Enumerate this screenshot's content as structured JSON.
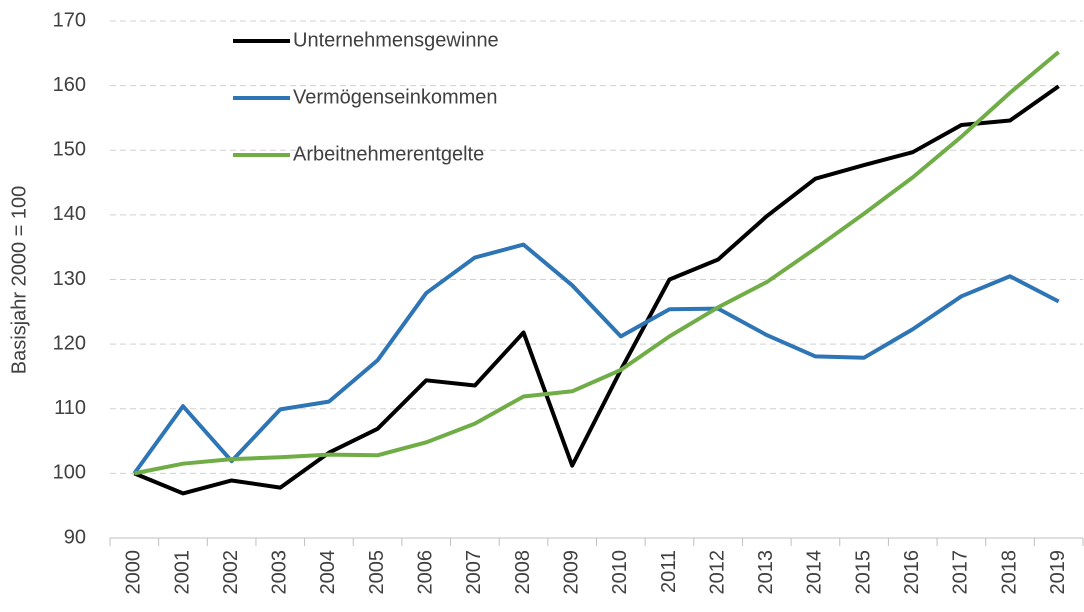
{
  "chart_data": {
    "type": "line",
    "y_label": "Basisjahr 2000 = 100",
    "categories": [
      "2000",
      "2001",
      "2002",
      "2003",
      "2004",
      "2005",
      "2006",
      "2007",
      "2008",
      "2009",
      "2010",
      "2011",
      "2012",
      "2013",
      "2014",
      "2015",
      "2016",
      "2017",
      "2018",
      "2019"
    ],
    "series": [
      {
        "name": "Unternehmensgewinne",
        "color": "#000000",
        "values": [
          100,
          96.9,
          98.9,
          97.8,
          103.2,
          106.9,
          114.4,
          113.6,
          121.8,
          101.2,
          116,
          130,
          133.1,
          139.8,
          145.6,
          147.7,
          149.7,
          153.9,
          154.6,
          159.9
        ]
      },
      {
        "name": "Vermögenseinkommen",
        "color": "#2e75b6",
        "values": [
          100,
          110.4,
          101.9,
          109.9,
          111.1,
          117.5,
          127.9,
          133.4,
          135.4,
          129.1,
          121.2,
          125.4,
          125.5,
          121.4,
          118.1,
          117.9,
          122.3,
          127.4,
          130.5,
          126.6
        ]
      },
      {
        "name": "Arbeitnehmerentgelte",
        "color": "#70ad47",
        "values": [
          100,
          101.5,
          102.2,
          102.5,
          102.9,
          102.8,
          104.8,
          107.7,
          111.9,
          112.7,
          116,
          121.2,
          125.7,
          129.6,
          134.8,
          140.2,
          145.8,
          152.1,
          158.9,
          165.2
        ]
      }
    ],
    "ylim": [
      90,
      170
    ],
    "yticks": [
      90,
      100,
      110,
      120,
      130,
      140,
      150,
      160,
      170
    ],
    "grid": true
  }
}
